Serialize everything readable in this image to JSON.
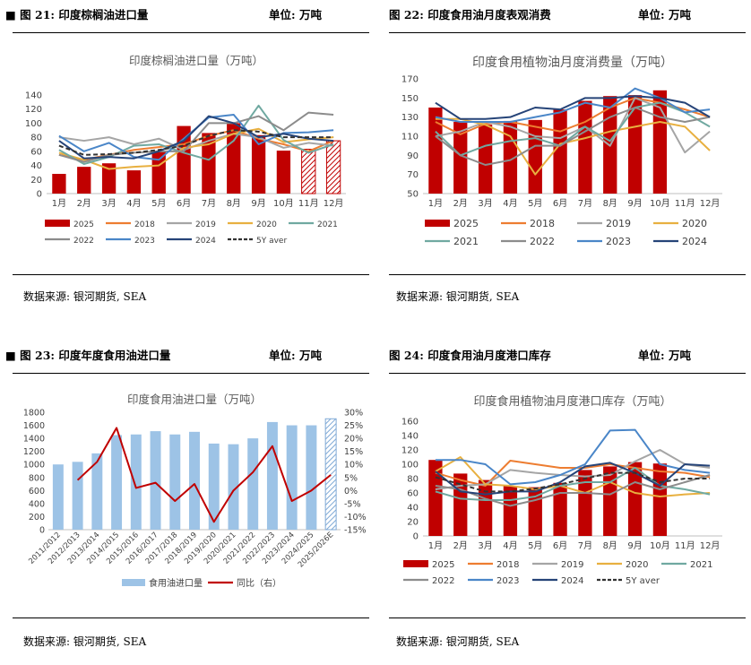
{
  "panels": [
    {
      "id": "p21",
      "fig": "图 21:",
      "title": "印度棕榈油进口量",
      "unit": "单位: 万吨",
      "source": "数据来源: 银河期货, SEA"
    },
    {
      "id": "p22",
      "fig": "图 22:",
      "title": "印度食用油月度表观消费",
      "unit": "单位: 万吨",
      "source": "数据来源: 银河期货, SEA"
    },
    {
      "id": "p23",
      "fig": "图 23:",
      "title": "印度年度食用油进口量",
      "unit": "单位: 万吨",
      "source": "数据来源: 银河期货, SEA"
    },
    {
      "id": "p24",
      "fig": "图 24:",
      "title": "印度食用油月度港口库存",
      "unit": "单位: 万吨",
      "source": "数据来源: 银河期货, SEA"
    }
  ],
  "colors": {
    "bar_red": "#c00000",
    "c2018": "#ed7d31",
    "c2019": "#a5a5a5",
    "c2020": "#e8b040",
    "c2021": "#70a9a1",
    "c2022": "#8c8c8c",
    "c2023": "#4a86c8",
    "c2024": "#264478",
    "c5y": "#333333",
    "bar_blue": "#9dc3e6",
    "grid": "#d9d9d9"
  },
  "chart_data": [
    {
      "type": "bar+line",
      "title": "印度棕榈油进口量（万吨）",
      "categories": [
        "1月",
        "2月",
        "3月",
        "4月",
        "5月",
        "6月",
        "7月",
        "8月",
        "9月",
        "10月",
        "11月",
        "12月"
      ],
      "ylim": [
        0,
        140
      ],
      "yticks": [
        0,
        20,
        40,
        60,
        80,
        100,
        120,
        140
      ],
      "bar": {
        "name": "2025",
        "values": [
          28,
          38,
          43,
          33,
          60,
          96,
          86,
          100,
          83,
          61,
          63,
          75
        ],
        "hatched_from": 10
      },
      "series": [
        {
          "name": "2018",
          "color": "#ed7d31",
          "values": [
            55,
            48,
            55,
            62,
            66,
            70,
            82,
            90,
            78,
            70,
            60,
            75
          ]
        },
        {
          "name": "2019",
          "color": "#a5a5a5",
          "values": [
            80,
            75,
            80,
            70,
            78,
            62,
            75,
            85,
            80,
            65,
            72,
            68
          ]
        },
        {
          "name": "2020",
          "color": "#e8b040",
          "values": [
            58,
            48,
            35,
            38,
            40,
            65,
            70,
            85,
            92,
            73,
            77,
            80
          ]
        },
        {
          "name": "2021",
          "color": "#70a9a1",
          "values": [
            62,
            42,
            52,
            68,
            70,
            58,
            48,
            75,
            125,
            76,
            58,
            70
          ]
        },
        {
          "name": "2022",
          "color": "#8c8c8c",
          "values": [
            55,
            45,
            55,
            58,
            60,
            60,
            100,
            100,
            110,
            90,
            115,
            112
          ]
        },
        {
          "name": "2023",
          "color": "#4a86c8",
          "values": [
            82,
            60,
            72,
            52,
            48,
            78,
            108,
            112,
            70,
            86,
            87,
            90
          ]
        },
        {
          "name": "2024",
          "color": "#264478",
          "values": [
            75,
            50,
            52,
            50,
            60,
            75,
            110,
            100,
            80,
            85,
            78,
            75
          ]
        },
        {
          "name": "5Y aver",
          "color": "#333333",
          "dashed": true,
          "values": [
            68,
            55,
            56,
            58,
            62,
            68,
            82,
            90,
            88,
            80,
            80,
            80
          ]
        }
      ],
      "legend": [
        "2025",
        "2018",
        "2019",
        "2020",
        "2021",
        "2022",
        "2023",
        "2024",
        "5Y aver"
      ]
    },
    {
      "type": "bar+line",
      "title": "印度食用植物油月度消费量（万吨）",
      "categories": [
        "1月",
        "2月",
        "3月",
        "4月",
        "5月",
        "6月",
        "7月",
        "8月",
        "9月",
        "10月",
        "11月",
        "12月"
      ],
      "ylim": [
        50,
        170
      ],
      "yticks": [
        50,
        70,
        90,
        110,
        130,
        150,
        170
      ],
      "bar": {
        "name": "2025",
        "values": [
          140,
          125,
          122,
          126,
          127,
          138,
          147,
          152,
          153,
          158
        ]
      },
      "series": [
        {
          "name": "2018",
          "color": "#ed7d31",
          "values": [
            125,
            112,
            123,
            125,
            120,
            115,
            125,
            140,
            150,
            145,
            138,
            130
          ]
        },
        {
          "name": "2019",
          "color": "#a5a5a5",
          "values": [
            110,
            115,
            125,
            120,
            110,
            108,
            120,
            100,
            150,
            140,
            93,
            115
          ]
        },
        {
          "name": "2020",
          "color": "#e8b040",
          "values": [
            128,
            128,
            122,
            110,
            70,
            102,
            108,
            115,
            120,
            125,
            120,
            95
          ]
        },
        {
          "name": "2021",
          "color": "#70a9a1",
          "values": [
            115,
            90,
            100,
            105,
            108,
            100,
            120,
            105,
            140,
            145,
            135,
            120
          ]
        },
        {
          "name": "2022",
          "color": "#8c8c8c",
          "values": [
            110,
            90,
            80,
            85,
            100,
            100,
            115,
            130,
            140,
            130,
            125,
            130
          ]
        },
        {
          "name": "2023",
          "color": "#4a86c8",
          "values": [
            130,
            125,
            125,
            125,
            130,
            135,
            145,
            140,
            160,
            150,
            135,
            138
          ]
        },
        {
          "name": "2024",
          "color": "#264478",
          "values": [
            145,
            128,
            128,
            130,
            140,
            138,
            150,
            150,
            152,
            150,
            145,
            130
          ]
        }
      ],
      "legend": [
        "2025",
        "2018",
        "2019",
        "2020",
        "2021",
        "2022",
        "2023",
        "2024"
      ]
    },
    {
      "type": "bar+line-dual-axis",
      "title": "印度食用油进口量（万吨）",
      "categories": [
        "2011/2012",
        "2012/2013",
        "2013/2014",
        "2014/2015",
        "2015/2016",
        "2016/2017",
        "2017/2018",
        "2018/2019",
        "2019/2020",
        "2020/2021",
        "2021/2022",
        "2022/2023",
        "2023/2024",
        "2024/2025",
        "2025/2026E"
      ],
      "ylim": [
        0,
        1800
      ],
      "yticks": [
        0,
        200,
        400,
        600,
        800,
        1000,
        1200,
        1400,
        1600,
        1800
      ],
      "y2lim": [
        -15,
        30
      ],
      "y2ticks": [
        "-15%",
        "-10%",
        "-5%",
        "0%",
        "5%",
        "10%",
        "15%",
        "20%",
        "25%",
        "30%"
      ],
      "bar": {
        "name": "食用油进口量",
        "values": [
          1000,
          1040,
          1170,
          1450,
          1460,
          1510,
          1460,
          1500,
          1320,
          1310,
          1400,
          1650,
          1600,
          1600,
          1700
        ],
        "hatched_from": 14
      },
      "line": {
        "name": "同比（右）",
        "values": [
          null,
          4,
          11,
          24,
          1,
          3,
          -4,
          2.5,
          -12,
          0,
          7,
          17,
          -4,
          0,
          6
        ]
      },
      "legend": [
        "食用油进口量",
        "同比（右）"
      ]
    },
    {
      "type": "bar+line",
      "title": "印度食用植物油月度港口库存（万吨）",
      "categories": [
        "1月",
        "2月",
        "3月",
        "4月",
        "5月",
        "6月",
        "7月",
        "8月",
        "9月",
        "10月",
        "11月",
        "12月"
      ],
      "ylim": [
        0,
        160
      ],
      "yticks": [
        0,
        20,
        40,
        60,
        80,
        100,
        120,
        140,
        160
      ],
      "bar": {
        "name": "2025",
        "values": [
          106,
          87,
          78,
          70,
          68,
          74,
          92,
          97,
          103,
          101
        ]
      },
      "series": [
        {
          "name": "2018",
          "color": "#ed7d31",
          "values": [
            88,
            78,
            70,
            105,
            100,
            95,
            95,
            100,
            95,
            90,
            88,
            82
          ]
        },
        {
          "name": "2019",
          "color": "#a5a5a5",
          "values": [
            65,
            70,
            72,
            92,
            88,
            85,
            83,
            85,
            104,
            120,
            100,
            95
          ]
        },
        {
          "name": "2020",
          "color": "#e8b040",
          "values": [
            90,
            110,
            72,
            70,
            65,
            70,
            60,
            75,
            60,
            55,
            58,
            60
          ]
        },
        {
          "name": "2021",
          "color": "#70a9a1",
          "values": [
            62,
            52,
            50,
            50,
            55,
            70,
            75,
            75,
            95,
            70,
            65,
            58
          ]
        },
        {
          "name": "2022",
          "color": "#8c8c8c",
          "values": [
            70,
            65,
            52,
            42,
            50,
            60,
            60,
            58,
            75,
            65,
            75,
            85
          ]
        },
        {
          "name": "2023",
          "color": "#4a86c8",
          "values": [
            106,
            106,
            100,
            72,
            75,
            85,
            100,
            147,
            148,
            100,
            92,
            88
          ]
        },
        {
          "name": "2024",
          "color": "#264478",
          "values": [
            90,
            62,
            58,
            62,
            62,
            75,
            97,
            102,
            88,
            70,
            100,
            98
          ]
        },
        {
          "name": "5Y aver",
          "color": "#333333",
          "dashed": true,
          "values": [
            82,
            72,
            62,
            62,
            66,
            72,
            80,
            88,
            88,
            75,
            80,
            80
          ]
        }
      ],
      "legend": [
        "2025",
        "2018",
        "2019",
        "2020",
        "2021",
        "2022",
        "2023",
        "2024",
        "5Y aver"
      ]
    }
  ]
}
